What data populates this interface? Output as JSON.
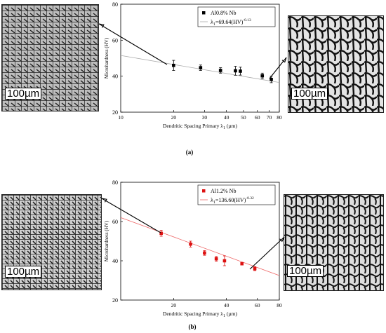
{
  "figure": {
    "panel_a": {
      "caption": "(a)",
      "left_micrograph": {
        "scale_label": "100µm"
      },
      "right_micrograph": {
        "scale_label": "100µm"
      }
    },
    "panel_b": {
      "caption": "(b)",
      "left_micrograph": {
        "scale_label": "100µm"
      },
      "right_micrograph": {
        "scale_label": "100µm"
      }
    }
  },
  "chart_data": [
    {
      "type": "scatter",
      "xlabel": "Dendritic Spacing Primary λ1 (µm)",
      "ylabel": "Microhardness (HV)",
      "x_scale": "log",
      "xlim": [
        10,
        80
      ],
      "ylim": [
        20,
        80
      ],
      "x_ticks": [
        10,
        20,
        30,
        40,
        50,
        60,
        70,
        80
      ],
      "y_ticks": [
        20,
        40,
        60,
        80
      ],
      "legend": {
        "placement": "top-right",
        "entries": [
          "Al0.8% Nb",
          "λ1=69.64(HV)-0.13"
        ]
      },
      "series": [
        {
          "name": "Al0.8% Nb",
          "color": "#000000",
          "x": [
            20,
            28.5,
            37,
            45,
            48,
            64,
            72
          ],
          "y": [
            46,
            44.7,
            43.2,
            43,
            42.8,
            40.2,
            38.2
          ],
          "yerr": [
            2.8,
            1.5,
            1.5,
            2.5,
            2.2,
            1.5,
            1.8
          ]
        }
      ],
      "fit": {
        "name": "λ1=69.64(HV)-0.13",
        "color": "#aaaaaa",
        "x": [
          10,
          80
        ],
        "y": [
          51.5,
          36.5
        ]
      }
    },
    {
      "type": "scatter",
      "xlabel": "Dendritic Spacing Primary λ1 (µm)",
      "ylabel": "Microhardness (HV)",
      "x_scale": "log",
      "xlim": [
        10,
        80
      ],
      "ylim": [
        20,
        80
      ],
      "x_ticks": [
        20,
        40,
        60,
        80
      ],
      "y_ticks": [
        20,
        40,
        60,
        80
      ],
      "legend": {
        "placement": "top-right",
        "entries": [
          "Al1.2% Nb",
          "λ1=136.60(HV)-0.32"
        ]
      },
      "series": [
        {
          "name": "Al1.2% Nb",
          "color": "#dd1111",
          "x": [
            17,
            25,
            30,
            35,
            39,
            49,
            58
          ],
          "y": [
            54,
            48.5,
            44,
            41,
            40,
            38.5,
            36
          ],
          "yerr": [
            1.5,
            1.5,
            1.2,
            1.2,
            2.5,
            0.5,
            1
          ]
        }
      ],
      "fit": {
        "name": "λ1=136.60(HV)-0.32",
        "color": "#ee6666",
        "x": [
          10,
          80
        ],
        "y": [
          62,
          32.5
        ]
      }
    }
  ]
}
